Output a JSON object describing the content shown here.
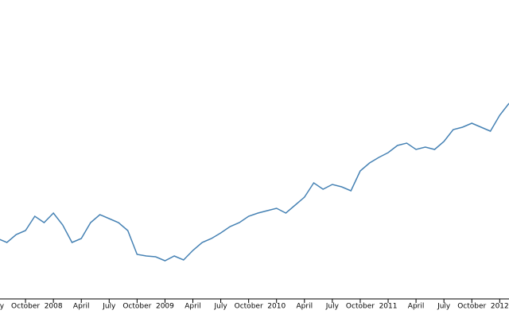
{
  "chart_data": {
    "type": "line",
    "x": [
      "2007-07",
      "2007-08",
      "2007-09",
      "2007-10",
      "2007-11",
      "2007-12",
      "2008-01",
      "2008-02",
      "2008-03",
      "2008-04",
      "2008-05",
      "2008-06",
      "2008-07",
      "2008-08",
      "2008-09",
      "2008-10",
      "2008-11",
      "2008-12",
      "2009-01",
      "2009-02",
      "2009-03",
      "2009-04",
      "2009-05",
      "2009-06",
      "2009-07",
      "2009-08",
      "2009-09",
      "2009-10",
      "2009-11",
      "2009-12",
      "2010-01",
      "2010-02",
      "2010-03",
      "2010-04",
      "2010-05",
      "2010-06",
      "2010-07",
      "2010-08",
      "2010-09",
      "2010-10",
      "2010-11",
      "2010-12",
      "2011-01",
      "2011-02",
      "2011-03",
      "2011-04",
      "2011-05",
      "2011-06",
      "2011-07",
      "2011-08",
      "2011-09",
      "2011-10",
      "2011-11",
      "2011-12",
      "2012-01",
      "2012-02"
    ],
    "series": [
      {
        "color": "#4682b4",
        "values": [
          76,
          71,
          81,
          86,
          104,
          96,
          108,
          93,
          71,
          76,
          96,
          106,
          101,
          96,
          86,
          56,
          54,
          53,
          48,
          54,
          49,
          61,
          71,
          76,
          83,
          91,
          96,
          104,
          108,
          111,
          114,
          108,
          118,
          128,
          146,
          138,
          144,
          141,
          136,
          161,
          171,
          178,
          184,
          193,
          196,
          188,
          191,
          188,
          198,
          213,
          216,
          221,
          216,
          211,
          231,
          246
        ]
      }
    ],
    "xlim": [
      "2007-07",
      "2012-02"
    ],
    "ylim": [
      0,
      376
    ],
    "xticks": [
      {
        "value": "2007-07",
        "label": "July"
      },
      {
        "value": "2007-10",
        "label": "October"
      },
      {
        "value": "2008-01",
        "label": "2008"
      },
      {
        "value": "2008-04",
        "label": "April"
      },
      {
        "value": "2008-07",
        "label": "July"
      },
      {
        "value": "2008-10",
        "label": "October"
      },
      {
        "value": "2009-01",
        "label": "2009"
      },
      {
        "value": "2009-04",
        "label": "April"
      },
      {
        "value": "2009-07",
        "label": "July"
      },
      {
        "value": "2009-10",
        "label": "October"
      },
      {
        "value": "2010-01",
        "label": "2010"
      },
      {
        "value": "2010-04",
        "label": "April"
      },
      {
        "value": "2010-07",
        "label": "July"
      },
      {
        "value": "2010-10",
        "label": "October"
      },
      {
        "value": "2011-01",
        "label": "2011"
      },
      {
        "value": "2011-04",
        "label": "April"
      },
      {
        "value": "2011-07",
        "label": "July"
      },
      {
        "value": "2011-10",
        "label": "October"
      },
      {
        "value": "2012-01",
        "label": "2012"
      }
    ]
  }
}
